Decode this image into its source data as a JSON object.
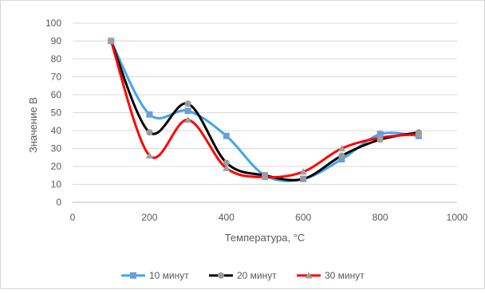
{
  "chart_data": {
    "type": "line",
    "title": "",
    "xlabel": "Температура, °C",
    "ylabel": "Значение В",
    "xlim": [
      0,
      1000
    ],
    "ylim": [
      0,
      100
    ],
    "x_ticks": [
      0,
      200,
      400,
      600,
      800,
      1000
    ],
    "y_ticks": [
      0,
      10,
      20,
      30,
      40,
      50,
      60,
      70,
      80,
      90,
      100
    ],
    "grid": "horizontal",
    "legend": "bottom",
    "smooth": true,
    "series": [
      {
        "name": "10 минут",
        "color": "#41a5e8",
        "marker_color": "#6b9fd6",
        "marker": "square",
        "x": [
          100,
          200,
          300,
          400,
          500,
          600,
          700,
          800,
          900
        ],
        "y": [
          90,
          49,
          51,
          37,
          15,
          13,
          24,
          38,
          37
        ]
      },
      {
        "name": "20 минут",
        "color": "#000000",
        "marker_color": "#9a9a9a",
        "marker": "circle",
        "x": [
          100,
          200,
          300,
          400,
          500,
          600,
          700,
          800,
          900
        ],
        "y": [
          90,
          39,
          55,
          22,
          15,
          13,
          26,
          35,
          39
        ]
      },
      {
        "name": "30 минут",
        "color": "#ff0000",
        "marker_color": "#a0a0a0",
        "marker": "triangle",
        "x": [
          100,
          200,
          300,
          400,
          500,
          600,
          700,
          800,
          900
        ],
        "y": [
          90,
          26,
          46,
          19,
          14,
          17,
          30,
          36,
          38
        ]
      }
    ]
  }
}
